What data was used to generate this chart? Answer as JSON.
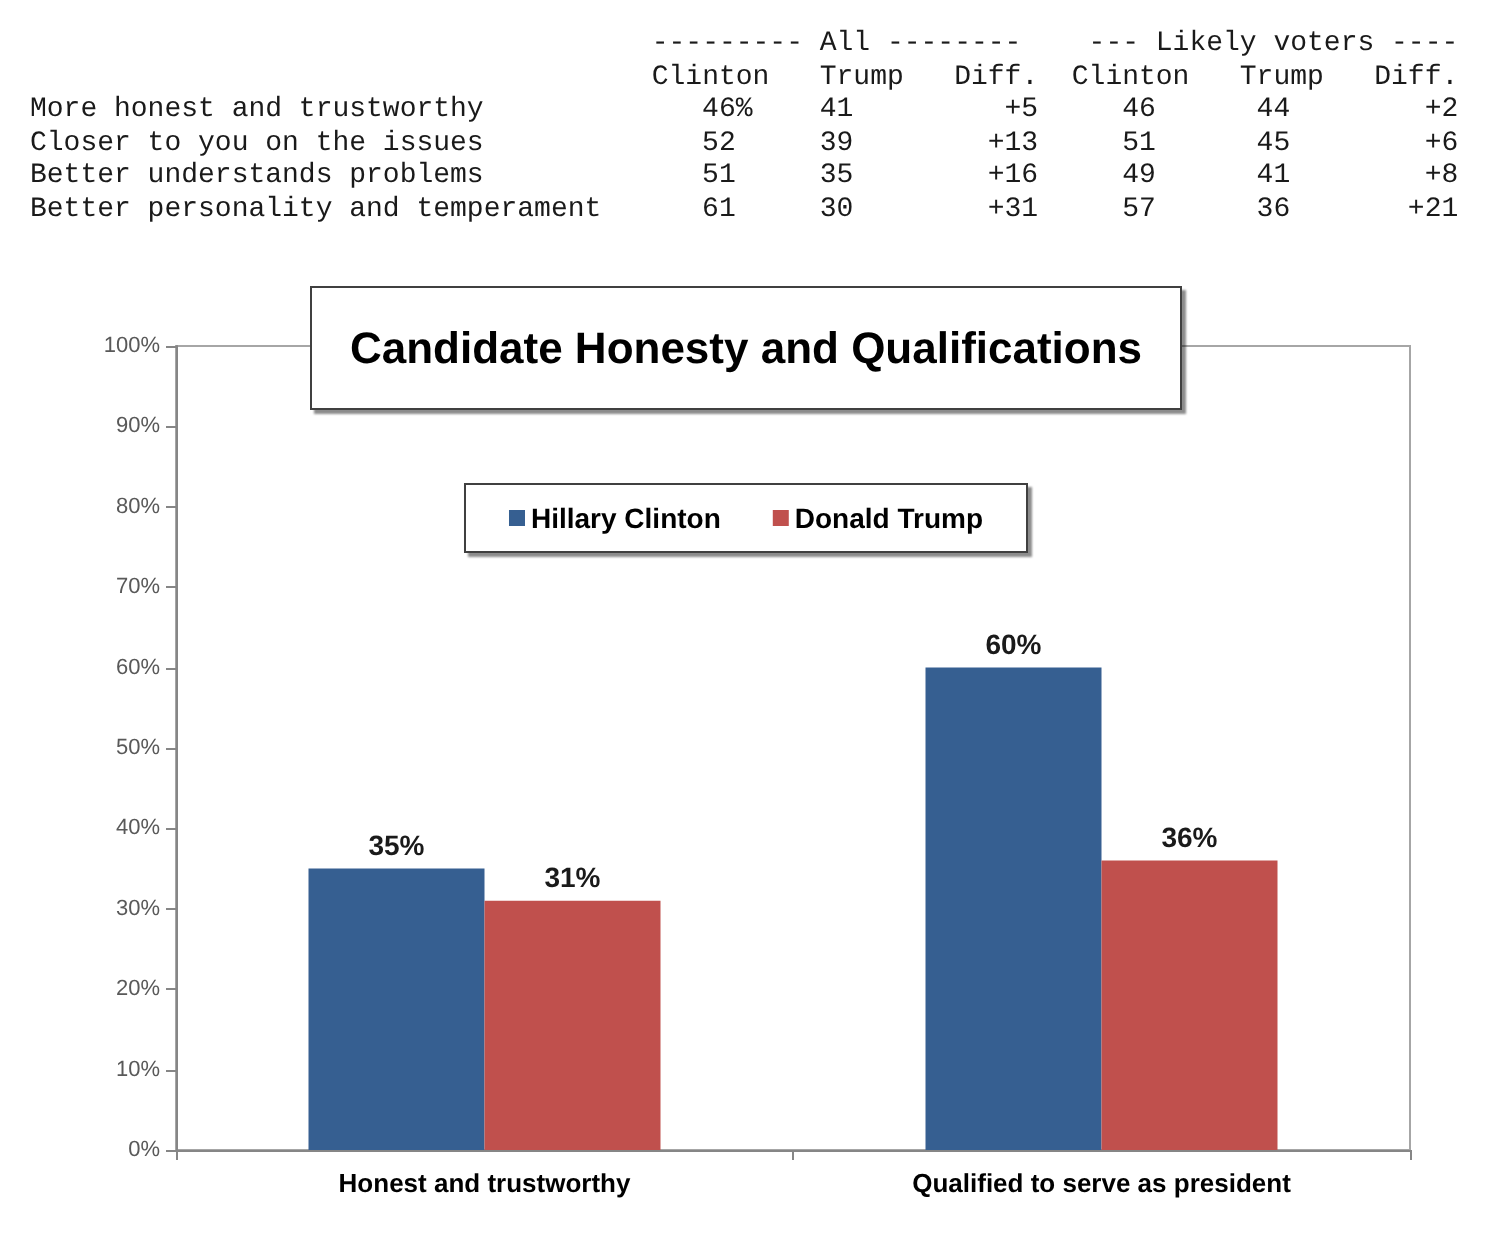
{
  "chart_data": [
    {
      "type": "other",
      "annotations": [
        "--------- All --------    --- Likely voters ----",
        "Clinton   Trump   Diff.  Clinton   Trump   Diff.",
        "More honest and trustworthy             46%    41         +5     46      44        +2",
        "Closer to you on the issues             52     39        +13     51      45        +6",
        "Better understands problems             51     35        +16     49      41        +8",
        "Better personality and temperament      61     30        +31     57      36       +21"
      ]
    },
    {
      "type": "bar",
      "title": "Candidate Honesty and Qualifications",
      "categories": [
        "Honest and trustworthy",
        "Qualified to serve as president"
      ],
      "series": [
        {
          "name": "Hillary Clinton",
          "color": "#365f91",
          "values": [
            35,
            60
          ],
          "value_labels": [
            "35%",
            "60%"
          ]
        },
        {
          "name": "Donald Trump",
          "color": "#c0504d",
          "values": [
            31,
            36
          ],
          "value_labels": [
            "31%",
            "36%"
          ]
        }
      ],
      "ylim": [
        0,
        100
      ],
      "yticks": [
        {
          "value": 0,
          "label": "0%"
        },
        {
          "value": 10,
          "label": "10%"
        },
        {
          "value": 20,
          "label": "20%"
        },
        {
          "value": 30,
          "label": "30%"
        },
        {
          "value": 40,
          "label": "40%"
        },
        {
          "value": 50,
          "label": "50%"
        },
        {
          "value": 60,
          "label": "60%"
        },
        {
          "value": 70,
          "label": "70%"
        },
        {
          "value": 80,
          "label": "80%"
        },
        {
          "value": 90,
          "label": "90%"
        },
        {
          "value": 100,
          "label": "100%"
        }
      ],
      "legend": "top"
    }
  ]
}
